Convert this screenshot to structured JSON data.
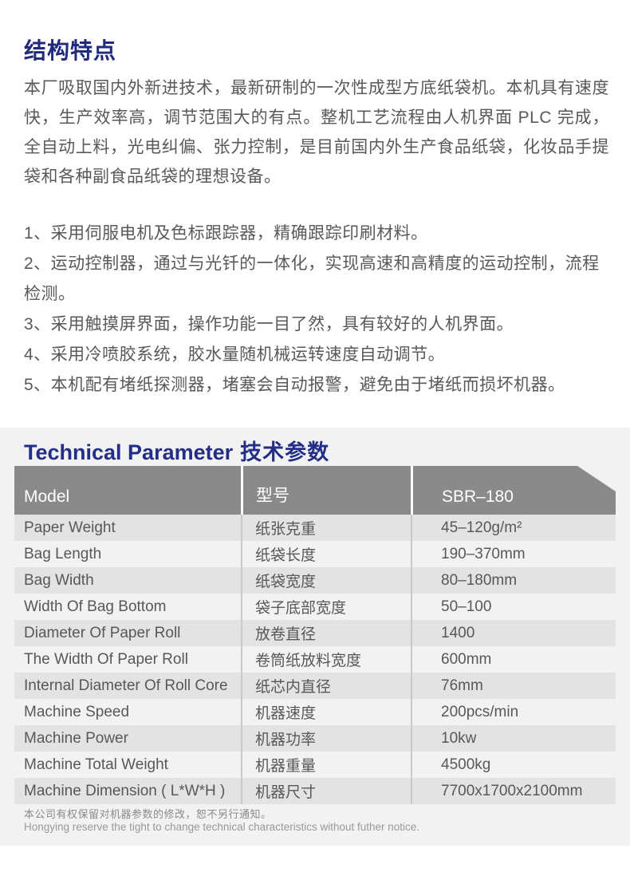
{
  "features": {
    "heading": "结构特点",
    "intro": "本厂吸取国内外新进技术，最新研制的一次性成型方底纸袋机。本机具有速度快，生产效率高，调节范围大的有点。整机工艺流程由人机界面 PLC 完成，全自动上料，光电纠偏、张力控制，是目前国内外生产食品纸袋，化妆品手提袋和各种副食品纸袋的理想设备。",
    "items": [
      "1、采用伺服电机及色标跟踪器，精确跟踪印刷材料。",
      "2、运动控制器，通过与光钎的一体化，实现高速和高精度的运动控制，流程检测。",
      "3、采用触摸屏界面，操作功能一目了然，具有较好的人机界面。",
      "4、采用冷喷胶系统，胶水量随机械运转速度自动调节。",
      "5、本机配有堵纸探测器，堵塞会自动报警，避免由于堵纸而损坏机器。"
    ]
  },
  "params": {
    "heading_en": "Technical Parameter",
    "heading_zh": "技术参数",
    "table": {
      "header": {
        "en": "Model",
        "zh": "型号",
        "value": "SBR–180"
      },
      "rows": [
        {
          "en": "Paper Weight",
          "zh": "纸张克重",
          "value": "45–120g/m²"
        },
        {
          "en": "Bag Length",
          "zh": "纸袋长度",
          "value": "190–370mm"
        },
        {
          "en": "Bag Width",
          "zh": "纸袋宽度",
          "value": "80–180mm"
        },
        {
          "en": "Width Of Bag Bottom",
          "zh": "袋子底部宽度",
          "value": "50–100"
        },
        {
          "en": "Diameter Of Paper Roll",
          "zh": "放卷直径",
          "value": "1400"
        },
        {
          "en": "The Width Of Paper Roll",
          "zh": "卷筒纸放料宽度",
          "value": "600mm"
        },
        {
          "en": "Internal Diameter Of Roll Core",
          "zh": "纸芯内直径",
          "value": "76mm"
        },
        {
          "en": "Machine Speed",
          "zh": "机器速度",
          "value": "200pcs/min"
        },
        {
          "en": "Machine Power",
          "zh": "机器功率",
          "value": "10kw"
        },
        {
          "en": "Machine Total Weight",
          "zh": "机器重量",
          "value": "4500kg"
        },
        {
          "en": "Machine Dimension ( L*W*H )",
          "zh": "机器尺寸",
          "value": "7700x1700x2100mm"
        }
      ]
    },
    "note_zh": "本公司有权保留对机器参数的修改，恕不另行通知。",
    "note_en": "Hongying reserve the tight to change technical characteristics without futher notice."
  },
  "colors": {
    "accent_navy": "#202b7d",
    "table_header_gray": "#8a8a8a",
    "row_stripe_gray": "#e3e3e3",
    "panel_gray": "#f2f2f2",
    "body_text_gray": "#58595b"
  }
}
